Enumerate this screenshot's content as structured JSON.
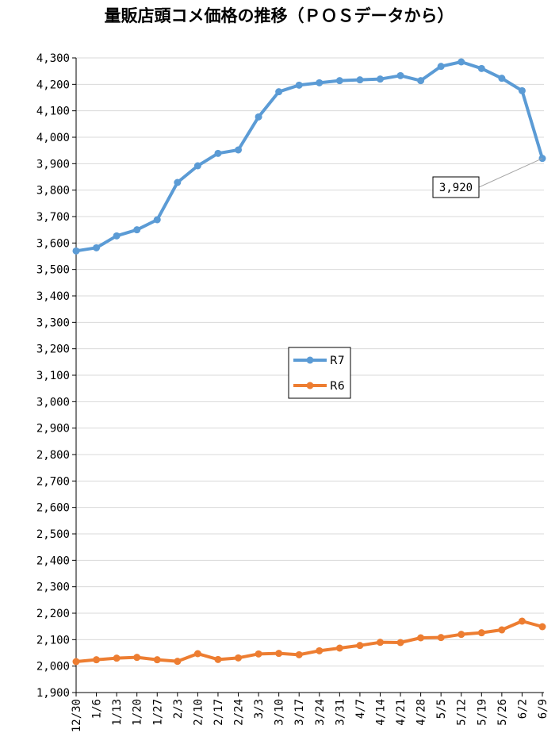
{
  "chart_data": {
    "type": "line",
    "title": "量販店頭コメ価格の推移（ＰＯＳデータから）",
    "xlabel": "",
    "ylabel": "",
    "ylim": [
      1900,
      4300
    ],
    "ytick_step": 100,
    "grid": true,
    "legend_position": "center",
    "categories": [
      "12/30",
      "1/6",
      "1/13",
      "1/20",
      "1/27",
      "2/3",
      "2/10",
      "2/17",
      "2/24",
      "3/3",
      "3/10",
      "3/17",
      "3/24",
      "3/31",
      "4/7",
      "4/14",
      "4/21",
      "4/28",
      "5/5",
      "5/12",
      "5/19",
      "5/26",
      "6/2",
      "6/9"
    ],
    "series": [
      {
        "name": "R7",
        "color": "#5b9bd5",
        "values": [
          3570,
          3582,
          3627,
          3650,
          3688,
          3829,
          3892,
          3939,
          3952,
          4077,
          4172,
          4197,
          4206,
          4214,
          4217,
          4220,
          4233,
          4214,
          4268,
          4285,
          4260,
          4223,
          4176,
          3920
        ]
      },
      {
        "name": "R6",
        "color": "#ed7d31",
        "values": [
          2017,
          2024,
          2030,
          2033,
          2024,
          2018,
          2047,
          2025,
          2031,
          2046,
          2048,
          2043,
          2058,
          2068,
          2078,
          2090,
          2089,
          2107,
          2108,
          2120,
          2126,
          2137,
          2170,
          2149
        ]
      }
    ],
    "annotations": [
      {
        "series": "R7",
        "category": "6/9",
        "label": "3,920"
      }
    ]
  }
}
